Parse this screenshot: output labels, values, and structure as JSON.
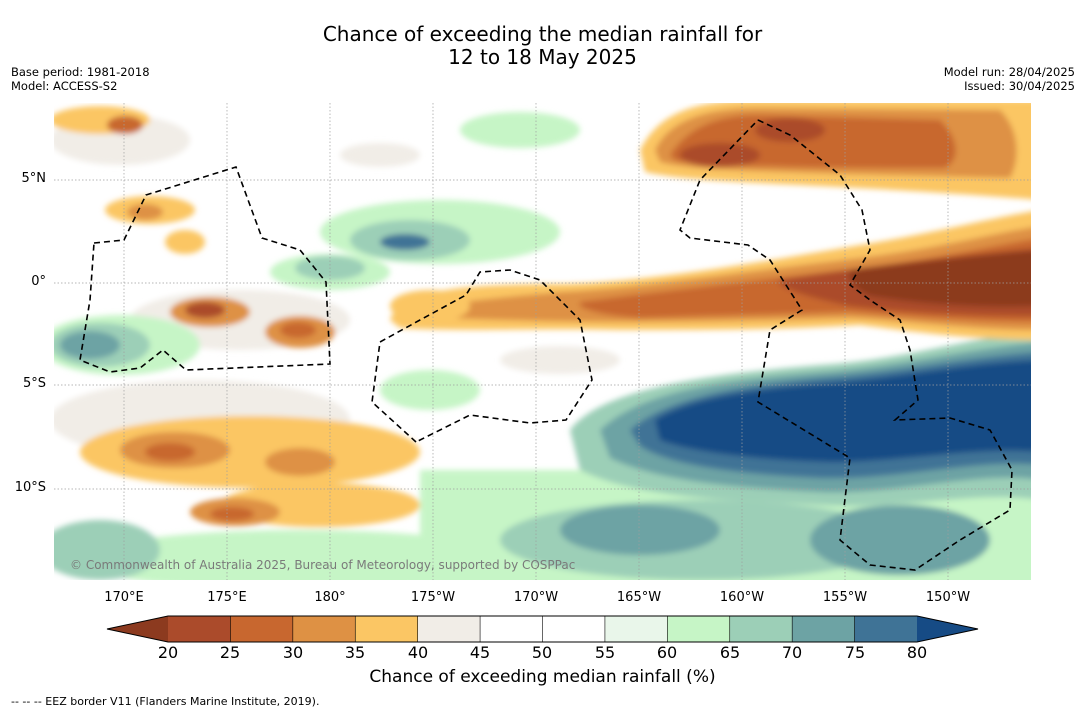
{
  "title": {
    "line1": "Chance of exceeding the median rainfall for",
    "line2": "12 to 18 May 2025"
  },
  "meta": {
    "base_period": "Base period: 1981-2018",
    "model": "Model: ACCESS-S2",
    "model_run": "Model run: 28/04/2025",
    "issued": "Issued: 30/04/2025"
  },
  "axes": {
    "lon_ticks": [
      "170°E",
      "175°E",
      "180°",
      "175°W",
      "170°W",
      "165°W",
      "160°W",
      "155°W",
      "150°W"
    ],
    "lat_ticks": [
      "5°N",
      "0°",
      "5°S",
      "10°S"
    ]
  },
  "colorbar": {
    "label": "Chance of exceeding median rainfall (%)",
    "ticks": [
      "20",
      "25",
      "30",
      "35",
      "40",
      "45",
      "50",
      "55",
      "60",
      "65",
      "70",
      "75",
      "80"
    ],
    "colors": [
      "#8c3a1f",
      "#ab4b2b",
      "#c8672f",
      "#de9144",
      "#fbc664",
      "#f1ede7",
      "#ffffff",
      "#ffffff",
      "#e9f6ea",
      "#c6f5c6",
      "#9ccfb7",
      "#6da3a4",
      "#3f7396",
      "#164b85"
    ]
  },
  "credit": "© Commonwealth of Australia 2025, Bureau of Meteorology, supported by COSPPac",
  "footnote": "--  --  -- EEZ border V11 (Flanders Marine Institute, 2019)."
}
